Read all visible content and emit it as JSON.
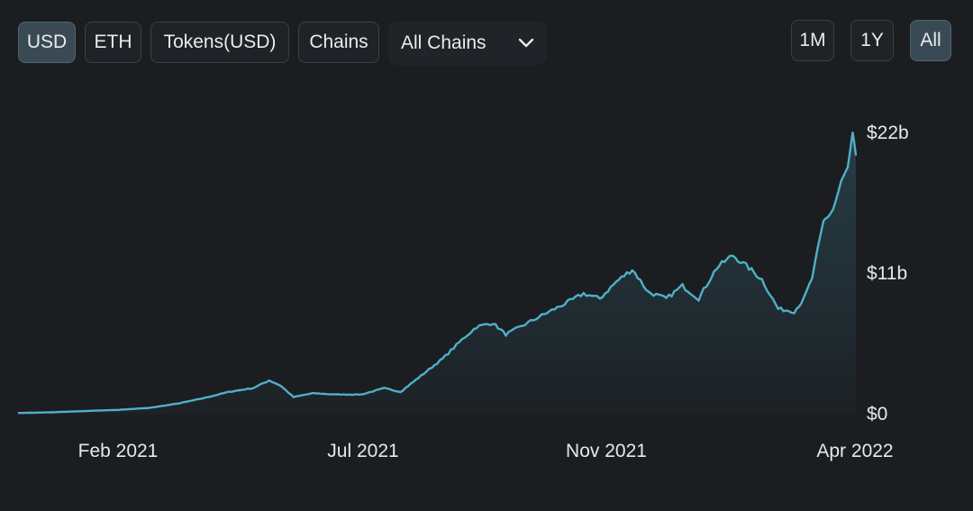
{
  "toolbar": {
    "denomination_buttons": [
      {
        "label": "USD",
        "active": true
      },
      {
        "label": "ETH",
        "active": false
      },
      {
        "label": "Tokens(USD)",
        "active": false
      },
      {
        "label": "Chains",
        "active": false
      }
    ],
    "chain_select": {
      "value": "All Chains",
      "icon": "chevron-down-icon"
    },
    "range_buttons": [
      {
        "label": "1M",
        "active": false
      },
      {
        "label": "1Y",
        "active": false
      },
      {
        "label": "All",
        "active": true
      }
    ]
  },
  "colors": {
    "background": "#1b1d21",
    "line": "#4fb0c6",
    "active_button": "#3a4a55"
  },
  "chart_data": {
    "type": "area",
    "title": "",
    "xlabel": "",
    "ylabel": "",
    "x_ticks": [
      "Feb 2021",
      "Jul 2021",
      "Nov 2021",
      "Apr 2022"
    ],
    "y_ticks": [
      "$0",
      "$11b",
      "$22b"
    ],
    "y_tick_values": [
      0,
      11,
      22
    ],
    "y_unit": "billion USD",
    "ylim": [
      0,
      22
    ],
    "x_range": [
      "2020-12",
      "2022-04"
    ],
    "y_axis_side": "right",
    "grid": false,
    "series": [
      {
        "values": [
          [
            "2020-12-01",
            0.05
          ],
          [
            "2020-12-20",
            0.1
          ],
          [
            "2021-01-10",
            0.2
          ],
          [
            "2021-02-01",
            0.3
          ],
          [
            "2021-02-20",
            0.45
          ],
          [
            "2021-03-10",
            0.8
          ],
          [
            "2021-03-25",
            1.2
          ],
          [
            "2021-04-10",
            1.7
          ],
          [
            "2021-04-25",
            2.0
          ],
          [
            "2021-05-05",
            2.6
          ],
          [
            "2021-05-12",
            2.2
          ],
          [
            "2021-05-20",
            1.3
          ],
          [
            "2021-06-01",
            1.6
          ],
          [
            "2021-06-15",
            1.5
          ],
          [
            "2021-07-01",
            1.5
          ],
          [
            "2021-07-15",
            2.0
          ],
          [
            "2021-07-25",
            1.7
          ],
          [
            "2021-08-05",
            2.8
          ],
          [
            "2021-08-20",
            4.3
          ],
          [
            "2021-09-01",
            5.8
          ],
          [
            "2021-09-10",
            6.8
          ],
          [
            "2021-09-20",
            7.1
          ],
          [
            "2021-09-28",
            6.2
          ],
          [
            "2021-10-10",
            7.0
          ],
          [
            "2021-10-25",
            8.0
          ],
          [
            "2021-11-05",
            8.7
          ],
          [
            "2021-11-15",
            9.4
          ],
          [
            "2021-11-25",
            9.0
          ],
          [
            "2021-12-05",
            10.3
          ],
          [
            "2021-12-15",
            11.3
          ],
          [
            "2021-12-25",
            9.5
          ],
          [
            "2022-01-05",
            9.0
          ],
          [
            "2022-01-15",
            10.0
          ],
          [
            "2022-01-25",
            9.0
          ],
          [
            "2022-02-05",
            11.4
          ],
          [
            "2022-02-15",
            12.4
          ],
          [
            "2022-02-25",
            11.4
          ],
          [
            "2022-03-05",
            10.5
          ],
          [
            "2022-03-15",
            8.2
          ],
          [
            "2022-03-25",
            8.0
          ],
          [
            "2022-03-31",
            9.0
          ],
          [
            "2022-04-05",
            10.6
          ],
          [
            "2022-04-12",
            15.0
          ],
          [
            "2022-04-18",
            16.0
          ],
          [
            "2022-04-23",
            18.1
          ],
          [
            "2022-04-27",
            19.2
          ],
          [
            "2022-04-30",
            21.7
          ],
          [
            "2022-05-02",
            20.2
          ]
        ]
      }
    ]
  }
}
